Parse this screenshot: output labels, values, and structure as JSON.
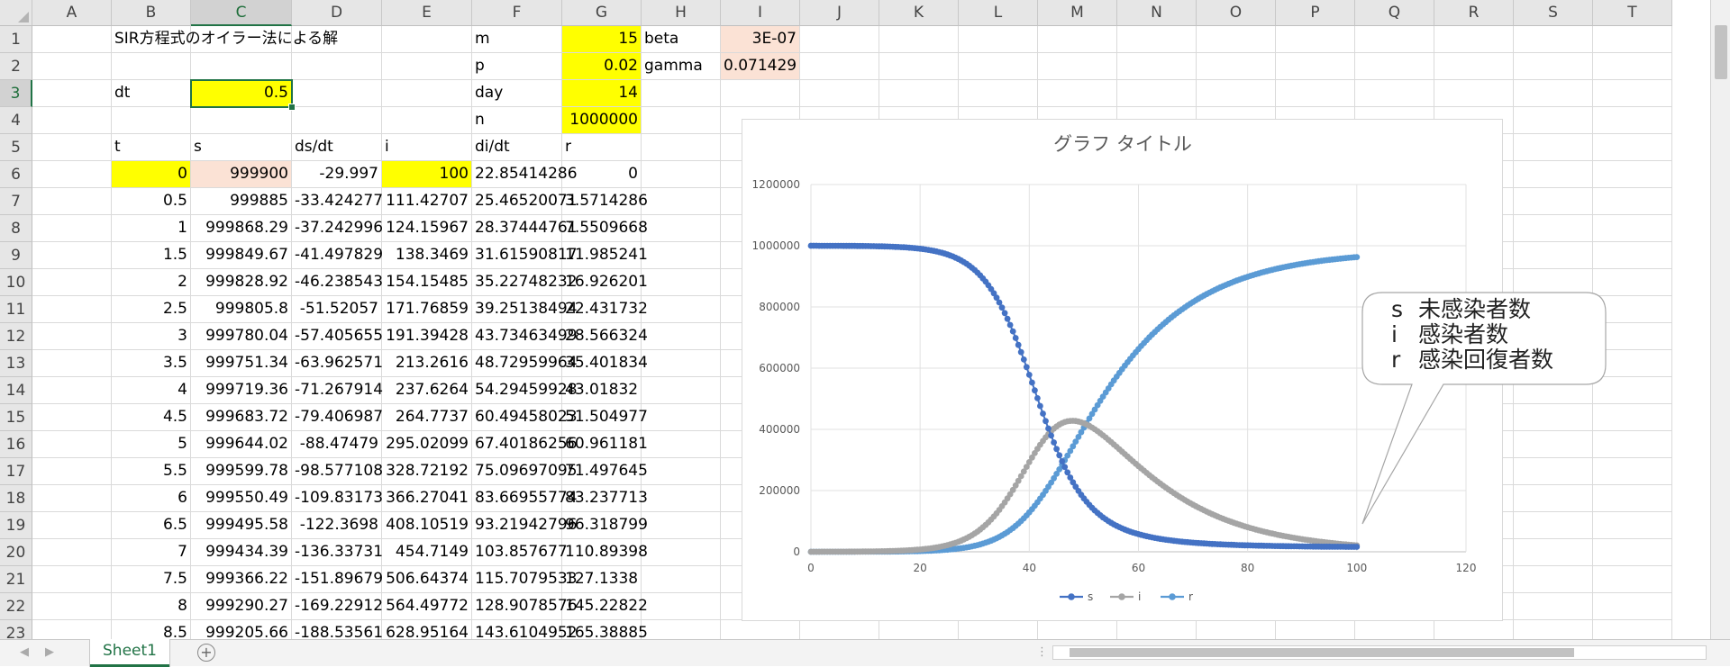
{
  "columns": [
    "A",
    "B",
    "C",
    "D",
    "E",
    "F",
    "G",
    "H",
    "I",
    "J",
    "K",
    "L",
    "M",
    "N",
    "O",
    "P",
    "Q",
    "R",
    "S",
    "T"
  ],
  "rows": [
    "1",
    "2",
    "3",
    "4",
    "5",
    "6",
    "7",
    "8",
    "9",
    "10",
    "11",
    "12",
    "13",
    "14",
    "15",
    "16",
    "17",
    "18",
    "19",
    "20",
    "21",
    "22",
    "23"
  ],
  "selected_cell": "C3",
  "cells": {
    "B1": "SIR方程式のオイラー法による解",
    "F1": "m",
    "G1": "15",
    "H1": "beta",
    "I1": "3E-07",
    "F2": "p",
    "G2": "0.02",
    "H2": "gamma",
    "I2": "0.071429",
    "B3": "dt",
    "C3": "0.5",
    "F3": "day",
    "G3": "14",
    "F4": "n",
    "G4": "1000000",
    "B5": "t",
    "C5": "s",
    "D5": "ds/dt",
    "E5": "i",
    "F5": "di/dt",
    "G5": "r"
  },
  "table": [
    [
      "0",
      "999900",
      "-29.997",
      "100",
      "22.85414286",
      "0"
    ],
    [
      "0.5",
      "999885",
      "-33.424277",
      "111.42707",
      "25.46520071",
      "3.5714286"
    ],
    [
      "1",
      "999868.29",
      "-37.242996",
      "124.15967",
      "28.37444761",
      "7.5509668"
    ],
    [
      "1.5",
      "999849.67",
      "-41.497829",
      "138.3469",
      "31.61590817",
      "11.985241"
    ],
    [
      "2",
      "999828.92",
      "-46.238543",
      "154.15485",
      "35.22748232",
      "16.926201"
    ],
    [
      "2.5",
      "999805.8",
      "-51.52057",
      "171.76859",
      "39.25138494",
      "22.431732"
    ],
    [
      "3",
      "999780.04",
      "-57.405655",
      "191.39428",
      "43.73463499",
      "28.566324"
    ],
    [
      "3.5",
      "999751.34",
      "-63.962571",
      "213.2616",
      "48.72959964",
      "35.401834"
    ],
    [
      "4",
      "999719.36",
      "-71.267914",
      "237.6264",
      "54.29459928",
      "43.01832"
    ],
    [
      "4.5",
      "999683.72",
      "-79.406987",
      "264.7737",
      "60.49458023",
      "51.504977"
    ],
    [
      "5",
      "999644.02",
      "-88.47479",
      "295.02099",
      "67.40186256",
      "60.961181"
    ],
    [
      "5.5",
      "999599.78",
      "-98.577108",
      "328.72192",
      "75.09697095",
      "71.497645"
    ],
    [
      "6",
      "999550.49",
      "-109.83173",
      "366.27041",
      "83.66955774",
      "83.237713"
    ],
    [
      "6.5",
      "999495.58",
      "-122.3698",
      "408.10519",
      "93.21942796",
      "96.318799"
    ],
    [
      "7",
      "999434.39",
      "-136.33731",
      "454.7149",
      "103.857677",
      "110.89398"
    ],
    [
      "7.5",
      "999366.22",
      "-151.89679",
      "506.64374",
      "115.7079533",
      "127.1338"
    ],
    [
      "8",
      "999290.27",
      "-169.22912",
      "564.49772",
      "128.9078576",
      "145.22822"
    ],
    [
      "8.5",
      "999205.66",
      "-188.53561",
      "628.95164",
      "143.6104952",
      "165.38885"
    ]
  ],
  "chart_data": {
    "type": "scatter",
    "title": "グラフ タイトル",
    "xlim": [
      0,
      120
    ],
    "ylim": [
      0,
      1200000
    ],
    "x_ticks": [
      "0",
      "20",
      "40",
      "60",
      "80",
      "100",
      "120"
    ],
    "y_ticks": [
      "0",
      "200000",
      "400000",
      "600000",
      "800000",
      "1000000",
      "1200000"
    ],
    "grid": true,
    "legend_position": "bottom",
    "n": 1000000,
    "beta": 3e-07,
    "gamma": 0.071429,
    "dt": 0.5,
    "t_max": 100,
    "series": [
      {
        "name": "s",
        "color": "#4472c4",
        "initial": 999900
      },
      {
        "name": "i",
        "color": "#a5a5a5",
        "initial": 100
      },
      {
        "name": "r",
        "color": "#5b9bd5",
        "initial": 0
      }
    ]
  },
  "callout": {
    "lines": [
      {
        "key": "s",
        "label": "未感染者数"
      },
      {
        "key": "i",
        "label": "感染者数"
      },
      {
        "key": "r",
        "label": "感染回復者数"
      }
    ]
  },
  "sheet_tabs": [
    "Sheet1"
  ]
}
